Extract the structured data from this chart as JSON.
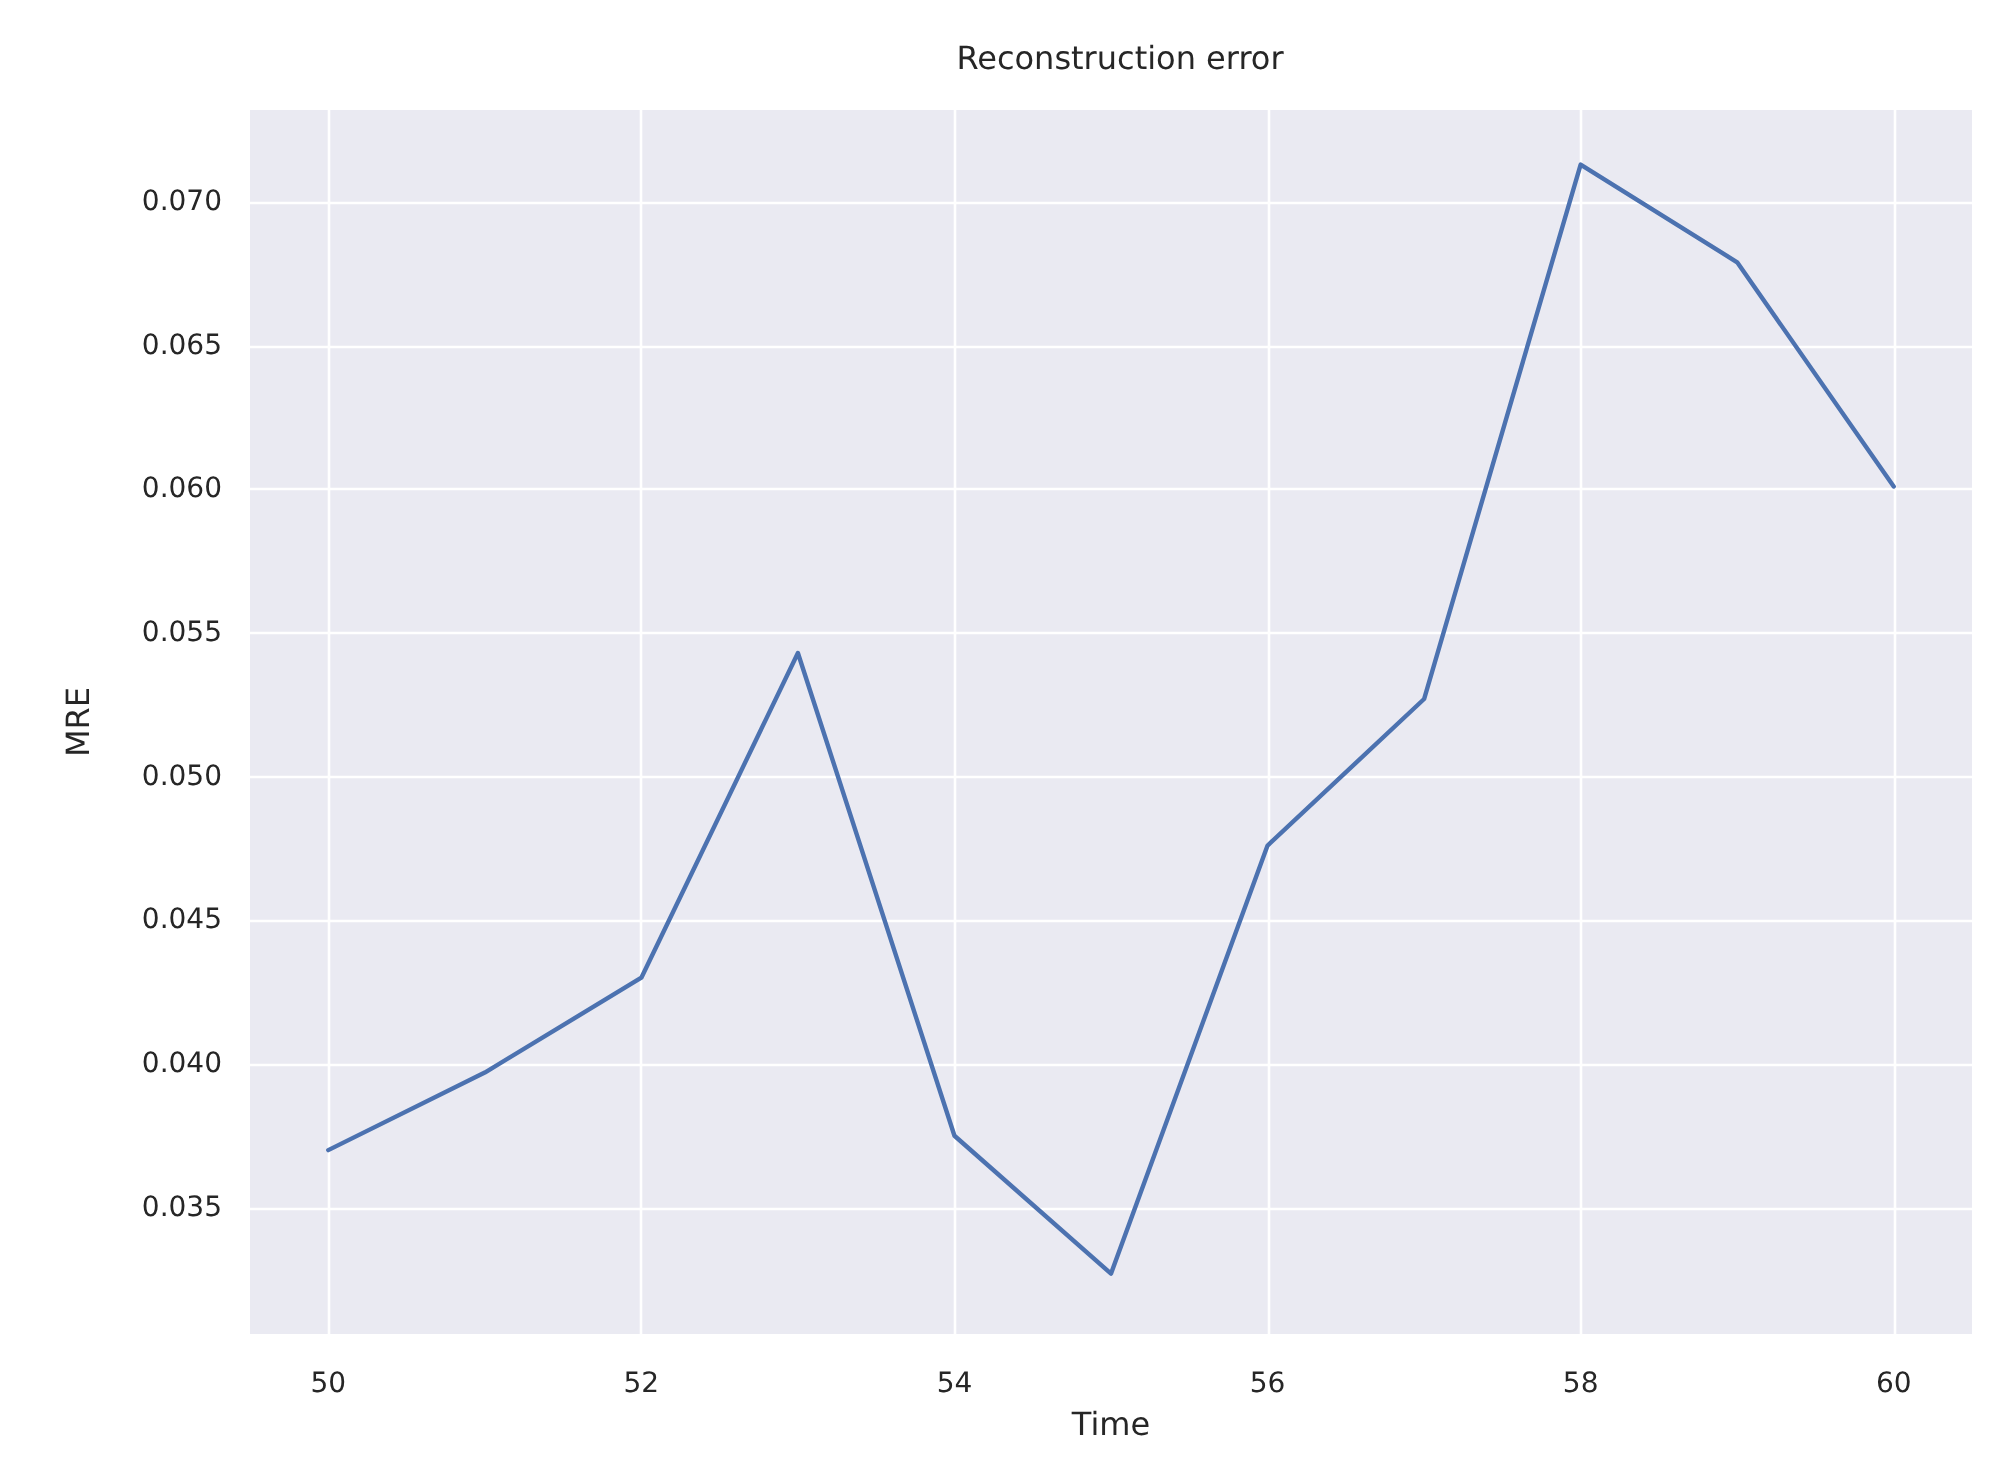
{
  "chart_data": {
    "type": "line",
    "title": "Reconstruction error",
    "xlabel": "Time",
    "ylabel": "MRE",
    "x": [
      50,
      51,
      52,
      53,
      54,
      55,
      56,
      57,
      58,
      59,
      60
    ],
    "series": [
      {
        "color": "#4c72b0",
        "values": [
          0.037,
          0.0397,
          0.043,
          0.0543,
          0.0375,
          0.0327,
          0.0476,
          0.0527,
          0.0713,
          0.0679,
          0.0601
        ]
      }
    ],
    "xlim": [
      49.5,
      60.5
    ],
    "xticks": [
      50,
      52,
      54,
      56,
      58,
      60
    ],
    "ylim": [
      0.0306,
      0.0732
    ],
    "yticks": [
      {
        "value": 0.035,
        "label": "0.035"
      },
      {
        "value": 0.04,
        "label": "0.040"
      },
      {
        "value": 0.045,
        "label": "0.045"
      },
      {
        "value": 0.05,
        "label": "0.050"
      },
      {
        "value": 0.055,
        "label": "0.055"
      },
      {
        "value": 0.06,
        "label": "0.060"
      },
      {
        "value": 0.065,
        "label": "0.065"
      },
      {
        "value": 0.07,
        "label": "0.070"
      }
    ],
    "grid": true,
    "marker": "none",
    "line_style": "solid"
  }
}
